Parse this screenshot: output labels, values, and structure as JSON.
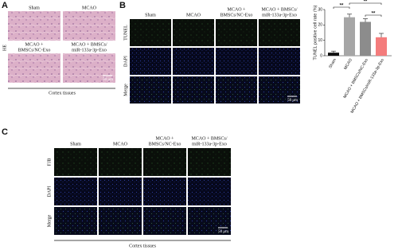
{
  "panel_a": {
    "label": "A",
    "row_label": "HE",
    "image_labels": [
      [
        "Sham"
      ],
      [
        "MCAO"
      ],
      [
        "MCAO +",
        "BMSCs/NC-Exo"
      ],
      [
        "MCAO + BMSCs/",
        "miR-133a-3p-Exo"
      ]
    ],
    "scale_bar": "50 μm",
    "caption": "Cortex tissues"
  },
  "panel_b": {
    "label": "B",
    "columns": [
      [
        "Sham"
      ],
      [
        "MCAO"
      ],
      [
        "MCAO +",
        "BMSCs/NC-Exo"
      ],
      [
        "MCAO + BMSCs/",
        "miR-133a-3p-Exo"
      ]
    ],
    "rows": [
      "TUNEL",
      "DAPI",
      "Merge"
    ],
    "scale_bar": "50 μm"
  },
  "panel_c": {
    "label": "C",
    "columns": [
      [
        "Sham"
      ],
      [
        "MCAO"
      ],
      [
        "MCAO +",
        "BMSCs/NC-Exo"
      ],
      [
        "MCAO + BMSCs/",
        "miR-133a-3p-Exo"
      ]
    ],
    "rows": [
      "FJB",
      "DAPI",
      "Merge"
    ],
    "scale_bar": "50 μm",
    "caption": "Cortex tissues"
  },
  "chart_data": {
    "type": "bar",
    "y_label": "TUNEL positive cell rate (%)",
    "categories": [
      "Sham",
      "MCAO",
      "MCAO + BMSCs/NC-Exo",
      "MCAO + BMSCs/miR-133a-3p-Exo"
    ],
    "values": [
      2,
      25,
      22,
      12
    ],
    "errors": [
      1,
      2,
      2,
      2.5
    ],
    "colors": [
      "#111111",
      "#a6a6a6",
      "#8c8c8c",
      "#f47c7c"
    ],
    "ylim": [
      0,
      30
    ],
    "yticks": [
      0,
      10,
      20,
      30
    ],
    "annotations": [
      "**",
      "**",
      "**"
    ]
  }
}
